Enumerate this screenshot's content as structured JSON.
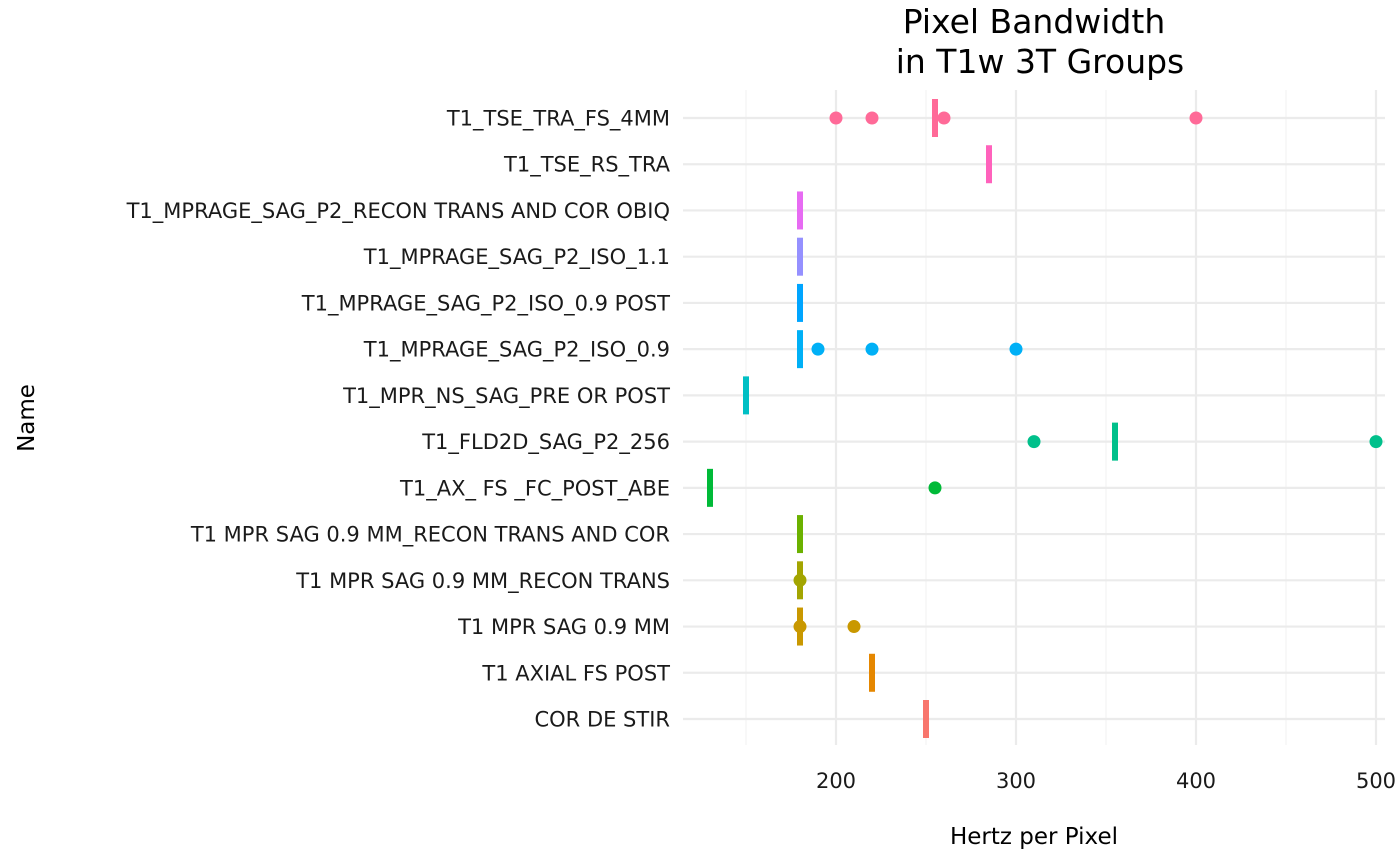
{
  "chart_data": {
    "type": "scatter",
    "title": [
      "Pixel Bandwidth",
      "in T1w 3T Groups"
    ],
    "xlabel": "Hertz per Pixel",
    "ylabel": "Name",
    "xlim": [
      115,
      505
    ],
    "x_ticks": [
      200,
      300,
      400,
      500
    ],
    "x_minor_ticks": [
      150,
      250,
      350,
      450
    ],
    "grid": true,
    "legend": "none",
    "categories": [
      "COR DE STIR",
      "T1 AXIAL FS POST",
      "T1 MPR SAG 0.9 MM",
      "T1 MPR SAG 0.9 MM_RECON TRANS",
      "T1 MPR SAG 0.9 MM_RECON TRANS AND COR",
      "T1_AX_ FS _FC_POST_ABE",
      "T1_FLD2D_SAG_P2_256",
      "T1_MPR_NS_SAG_PRE OR POST",
      "T1_MPRAGE_SAG_P2_ISO_0.9",
      "T1_MPRAGE_SAG_P2_ISO_0.9 POST",
      "T1_MPRAGE_SAG_P2_ISO_1.1",
      "T1_MPRAGE_SAG_P2_RECON TRANS AND COR OBIQ",
      "T1_TSE_RS_TRA",
      "T1_TSE_TRA_FS_4MM"
    ],
    "colors": [
      "#F8766D",
      "#E58700",
      "#C99800",
      "#A3A500",
      "#6BB100",
      "#00BA38",
      "#00C08B",
      "#00BFC4",
      "#00B0F6",
      "#00A5FF",
      "#9590FF",
      "#E76BF3",
      "#FF62BC",
      "#FF6A98"
    ],
    "medians": [
      250,
      220,
      180,
      180,
      180,
      130,
      355,
      150,
      180,
      180,
      180,
      180,
      285,
      255
    ],
    "points": [
      [],
      [],
      [
        180,
        210
      ],
      [
        180
      ],
      [],
      [
        255
      ],
      [
        310,
        500
      ],
      [],
      [
        190,
        220,
        300
      ],
      [],
      [],
      [],
      [],
      [
        200,
        220,
        260,
        400
      ]
    ]
  }
}
